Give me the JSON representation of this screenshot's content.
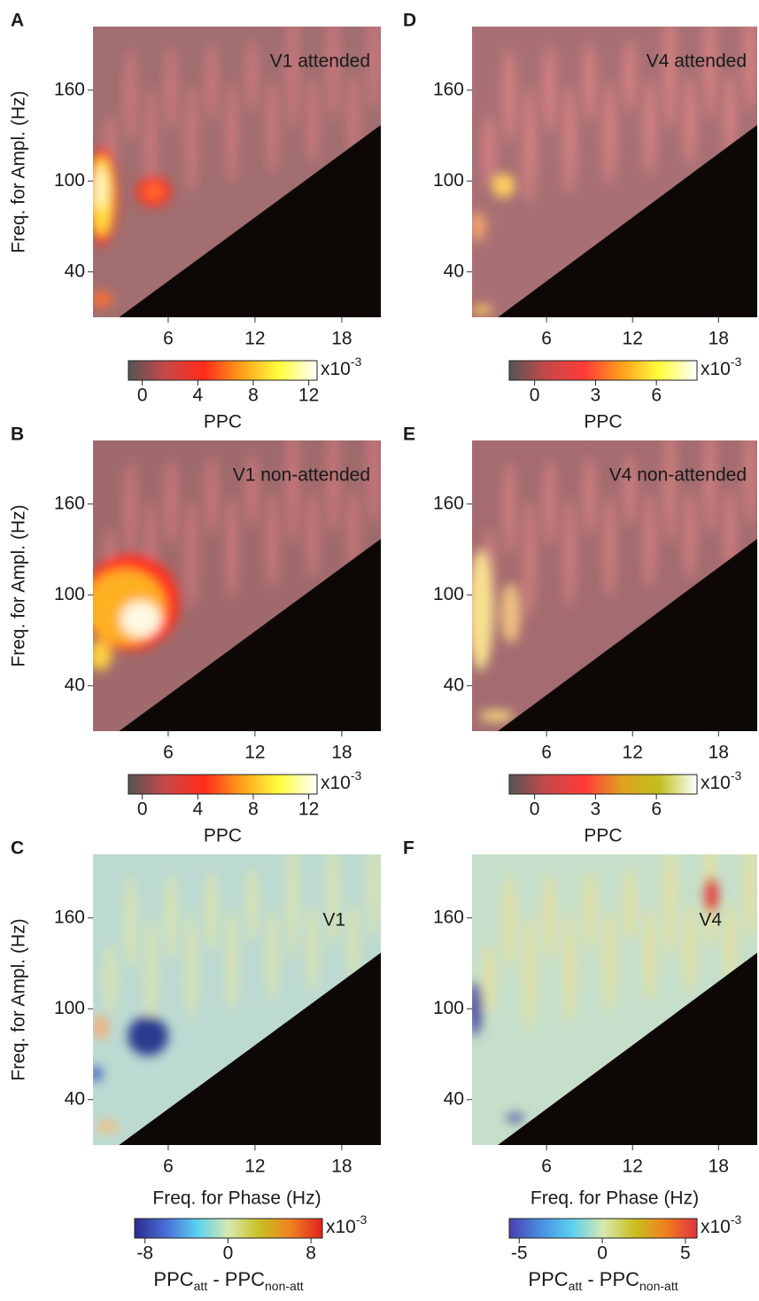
{
  "chart_data": [
    {
      "type": "heatmap",
      "panel": "A",
      "title": "V1 attended",
      "ylabel": "Freq. for Ampl. (Hz)",
      "xlim": [
        0.8,
        20.7
      ],
      "ylim": [
        10,
        202
      ],
      "xticks": [
        6,
        12,
        18
      ],
      "yticks": [
        40,
        100,
        160
      ],
      "colorbar": {
        "colors": [
          "#555555",
          "#c84848",
          "#ff2a1a",
          "#ffa01a",
          "#ffff40",
          "#ffffff"
        ],
        "lim": [
          -1,
          12.6
        ],
        "ticks": [
          0,
          4,
          8,
          12
        ],
        "unit_base": "x10",
        "unit_exp": "-3",
        "label": "PPC"
      }
    },
    {
      "type": "heatmap",
      "panel": "B",
      "title": "V1 non-attended",
      "ylabel": "Freq. for Ampl. (Hz)",
      "xlim": [
        0.8,
        20.7
      ],
      "ylim": [
        10,
        202
      ],
      "xticks": [
        6,
        12,
        18
      ],
      "yticks": [
        40,
        100,
        160
      ],
      "colorbar": {
        "colors": [
          "#555555",
          "#c84848",
          "#ff2a1a",
          "#ffa01a",
          "#ffff40",
          "#ffffff"
        ],
        "lim": [
          -1,
          12.6
        ],
        "ticks": [
          0,
          4,
          8,
          12
        ],
        "unit_base": "x10",
        "unit_exp": "-3",
        "label": "PPC"
      }
    },
    {
      "type": "heatmap",
      "panel": "C",
      "title": "V1",
      "ylabel": "Freq. for Ampl. (Hz)",
      "xlabel": "Freq. for Phase (Hz)",
      "xlim": [
        0.8,
        20.7
      ],
      "ylim": [
        10,
        202
      ],
      "xticks": [
        6,
        12,
        18
      ],
      "yticks": [
        40,
        100,
        160
      ],
      "colorbar": {
        "colors": [
          "#2a2a8c",
          "#4a6ed8",
          "#5ad0f0",
          "#d8e8b0",
          "#c8c020",
          "#f08020",
          "#e02020"
        ],
        "lim": [
          -9,
          9.1
        ],
        "ticks": [
          -8,
          0,
          8
        ],
        "unit_base": "x10",
        "unit_exp": "-3",
        "label_parts": [
          "PPC",
          "att",
          " - PPC",
          "non-att"
        ]
      }
    },
    {
      "type": "heatmap",
      "panel": "D",
      "title": "V4 attended",
      "xlim": [
        0.8,
        20.7
      ],
      "ylim": [
        10,
        202
      ],
      "xticks": [
        6,
        12,
        18
      ],
      "yticks": [
        40,
        100,
        160
      ],
      "colorbar": {
        "colors": [
          "#555555",
          "#c84848",
          "#ff3a3a",
          "#ffa01a",
          "#ffff40",
          "#ffffff"
        ],
        "lim": [
          -1.25,
          8
        ],
        "ticks": [
          0,
          3,
          6
        ],
        "unit_base": "x10",
        "unit_exp": "-3",
        "label": "PPC"
      }
    },
    {
      "type": "heatmap",
      "panel": "E",
      "title": "V4 non-attended",
      "xlim": [
        0.8,
        20.7
      ],
      "ylim": [
        10,
        202
      ],
      "xticks": [
        6,
        12,
        18
      ],
      "yticks": [
        40,
        100,
        160
      ],
      "colorbar": {
        "colors": [
          "#555555",
          "#c84848",
          "#ff3a3a",
          "#e0a020",
          "#c0c020",
          "#ffffff"
        ],
        "lim": [
          -1.25,
          8
        ],
        "ticks": [
          0,
          3,
          6
        ],
        "unit_base": "x10",
        "unit_exp": "-3",
        "label": "PPC"
      }
    },
    {
      "type": "heatmap",
      "panel": "F",
      "title": "V4",
      "xlabel": "Freq. for Phase (Hz)",
      "xlim": [
        0.8,
        20.7
      ],
      "ylim": [
        10,
        202
      ],
      "xticks": [
        6,
        12,
        18
      ],
      "yticks": [
        40,
        100,
        160
      ],
      "colorbar": {
        "colors": [
          "#4a40b0",
          "#4a8ee0",
          "#5ad0f0",
          "#d8e8b0",
          "#c8c020",
          "#f08020",
          "#e03040"
        ],
        "lim": [
          -5.6,
          5.7
        ],
        "ticks": [
          -5,
          0,
          5
        ],
        "unit_base": "x10",
        "unit_exp": "-3",
        "label_parts": [
          "PPC",
          "att",
          " - PPC",
          "non-att"
        ]
      }
    }
  ]
}
